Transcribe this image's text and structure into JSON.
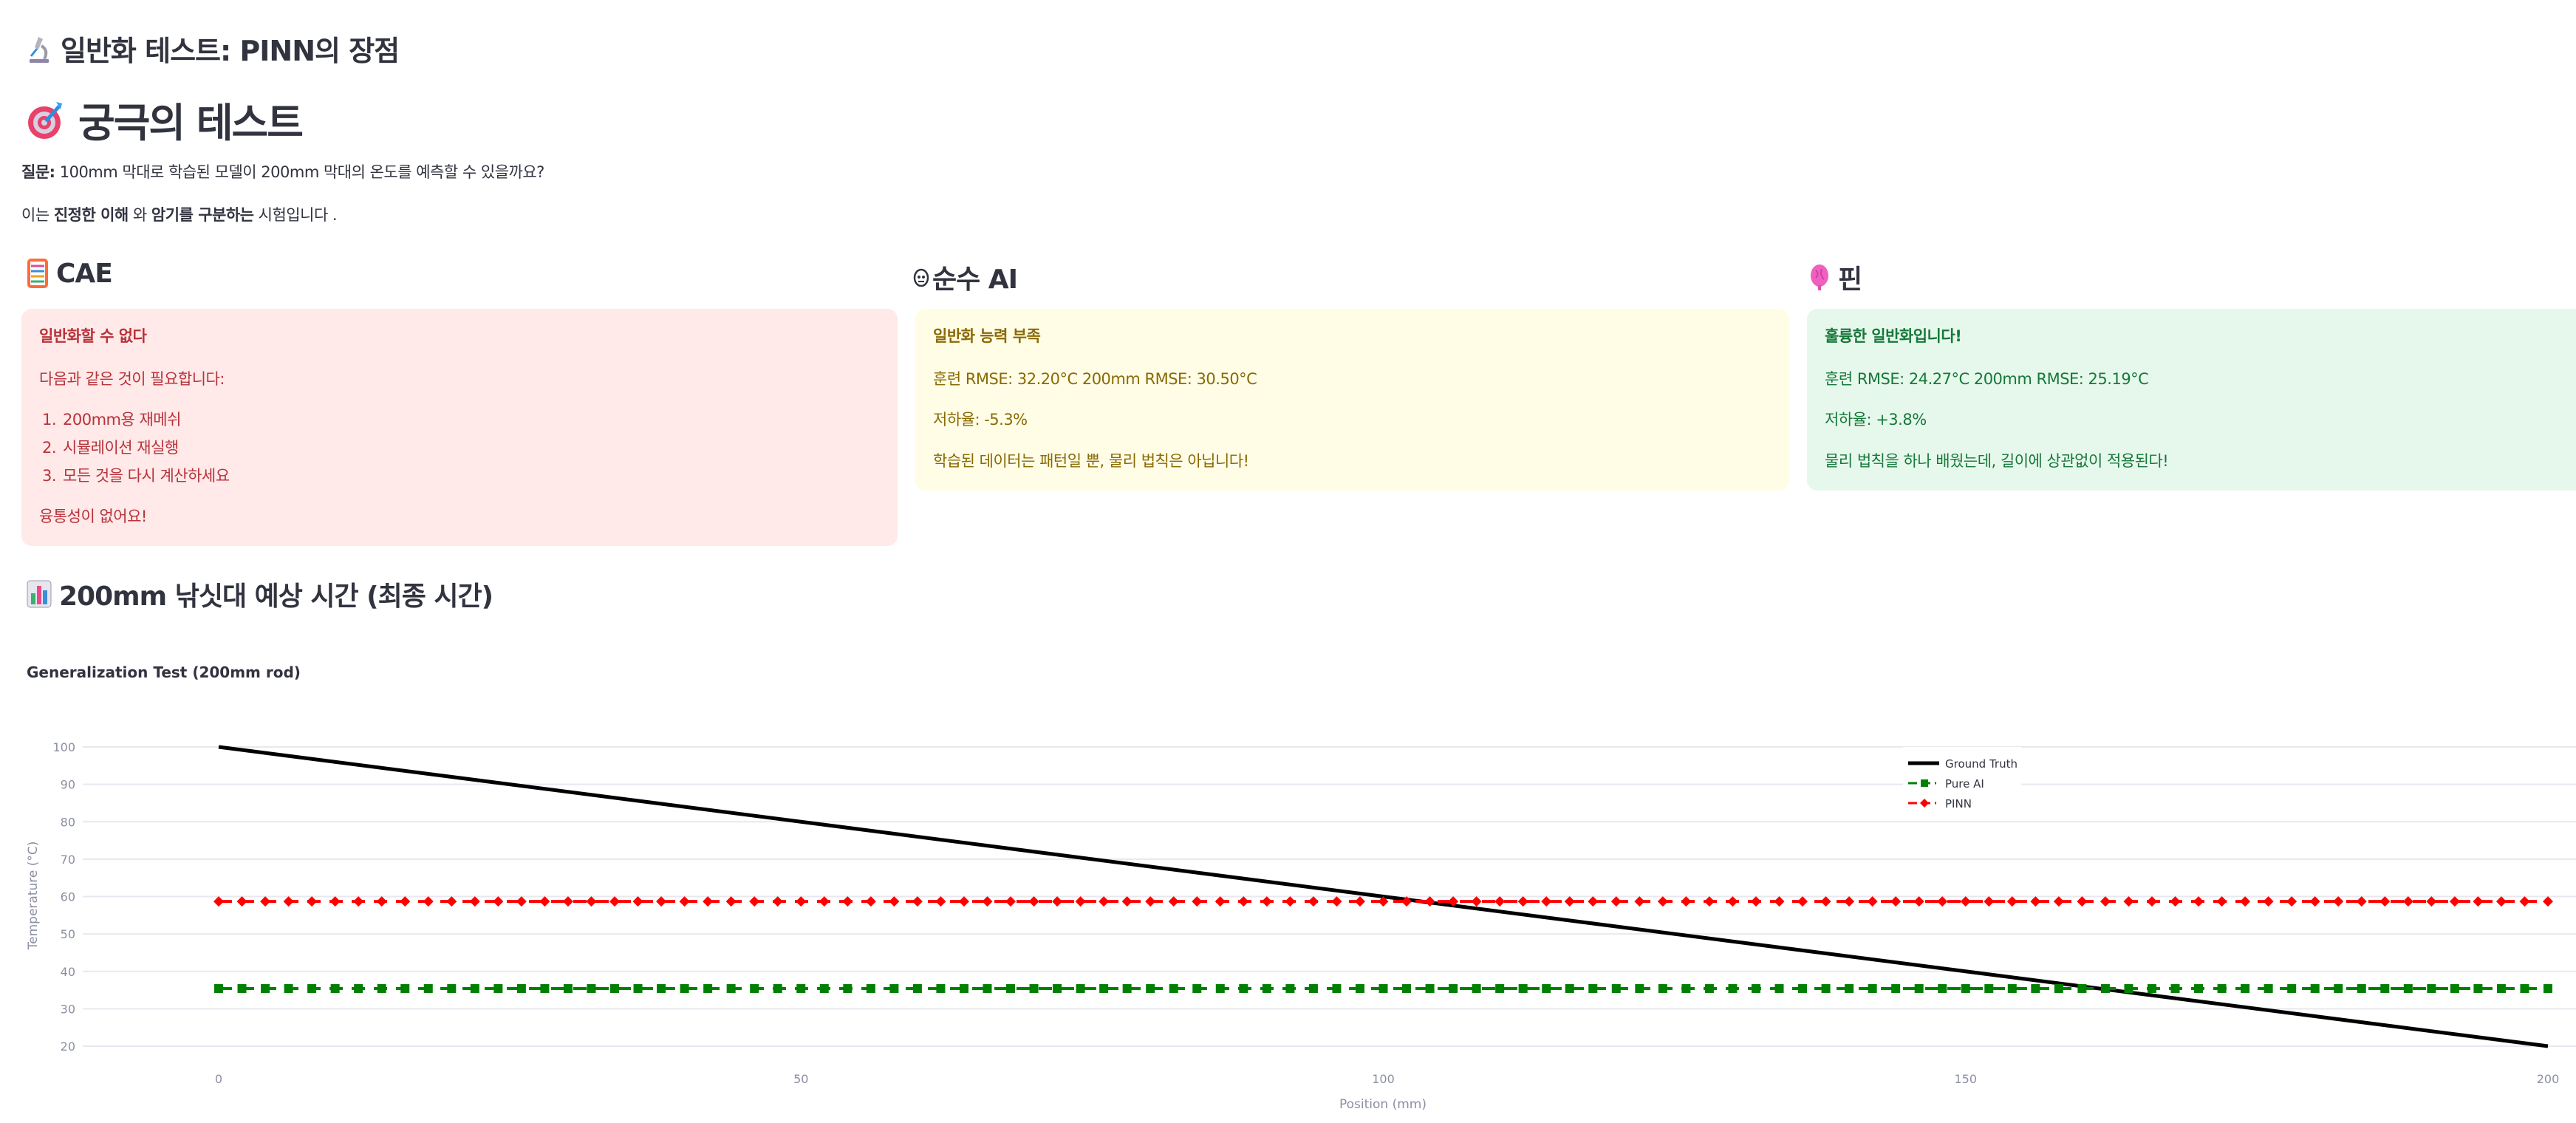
{
  "header": {
    "subtitle": "일반화 테스트: PINN의 장점",
    "subtitle_icon": "microscope-icon",
    "title": "궁극의 테스트",
    "title_icon": "target-icon"
  },
  "intro": {
    "question_label": "질문:",
    "question_text": " 100mm 막대로 학습된 모델이 200mm 막대의 온도를 예측할 수 있을까요?",
    "line2_a": "이는 ",
    "line2_b": "진정한 이해",
    "line2_c": " 와 ",
    "line2_d": "암기를 구분하는",
    "line2_e": " 시험입니다 ."
  },
  "columns": [
    {
      "heading": "CAE",
      "icon": "abacus-icon",
      "status": "error",
      "color": "#b8323a",
      "title": "일반화할 수 없다",
      "text": "다음과 같은 것이 필요합니다:",
      "list": [
        "200mm용 재메쉬",
        "시뮬레이션 재실행",
        "모든 것을 다시 계산하세요"
      ],
      "footer": "융통성이 없어요!"
    },
    {
      "heading": "순수 AI",
      "icon": "robot-face-icon",
      "status": "warning",
      "color": "#8a6a05",
      "title": "일반화 능력 부족",
      "metrics": "훈련 RMSE: 32.20°C 200mm RMSE: 30.50°C",
      "degradation": "저하율: -5.3%",
      "footer": "학습된 데이터는 패턴일 뿐, 물리 법칙은 아닙니다!"
    },
    {
      "heading": "핀",
      "icon": "brain-icon",
      "status": "success",
      "color": "#17783a",
      "title": "훌륭한 일반화입니다!",
      "metrics": "훈련 RMSE: 24.27°C 200mm RMSE: 25.19°C",
      "degradation": "저하율: +3.8%",
      "footer": "물리 법칙을 하나 배웠는데, 길이에 상관없이 적용된다!"
    }
  ],
  "section": {
    "heading": "200mm 낚싯대 예상 시간 (최종 시간)",
    "icon": "bar-chart-icon"
  },
  "chart_data": {
    "type": "line",
    "title": "Generalization Test (200mm rod)",
    "xlabel": "Position (mm)",
    "ylabel": "Temperature (°C)",
    "xlim": [
      0,
      200
    ],
    "ylim": [
      20,
      100
    ],
    "xticks": [
      "0",
      "50",
      "100",
      "150",
      "200"
    ],
    "yticks": [
      "20",
      "30",
      "40",
      "50",
      "60",
      "70",
      "80",
      "90",
      "100"
    ],
    "grid": true,
    "legend_position": "top-right",
    "x": [
      0,
      2,
      4,
      6,
      8,
      10,
      12,
      14,
      16,
      18,
      20,
      22,
      24,
      26,
      28,
      30,
      32,
      34,
      36,
      38,
      40,
      42,
      44,
      46,
      48,
      50,
      52,
      54,
      56,
      58,
      60,
      62,
      64,
      66,
      68,
      70,
      72,
      74,
      76,
      78,
      80,
      82,
      84,
      86,
      88,
      90,
      92,
      94,
      96,
      98,
      100,
      102,
      104,
      106,
      108,
      110,
      112,
      114,
      116,
      118,
      120,
      122,
      124,
      126,
      128,
      130,
      132,
      134,
      136,
      138,
      140,
      142,
      144,
      146,
      148,
      150,
      152,
      154,
      156,
      158,
      160,
      162,
      164,
      166,
      168,
      170,
      172,
      174,
      176,
      178,
      180,
      182,
      184,
      186,
      188,
      190,
      192,
      194,
      196,
      198,
      200
    ],
    "series": [
      {
        "name": "Ground Truth",
        "color": "#000000",
        "style": "solid",
        "marker": "none",
        "x": [
          0,
          200
        ],
        "values": [
          100,
          20
        ]
      },
      {
        "name": "Pure AI",
        "color": "#008000",
        "style": "dash",
        "marker": "square",
        "constant": 35.4
      },
      {
        "name": "PINN",
        "color": "#ff0000",
        "style": "dash",
        "marker": "diamond",
        "constant": 58.7
      }
    ]
  }
}
